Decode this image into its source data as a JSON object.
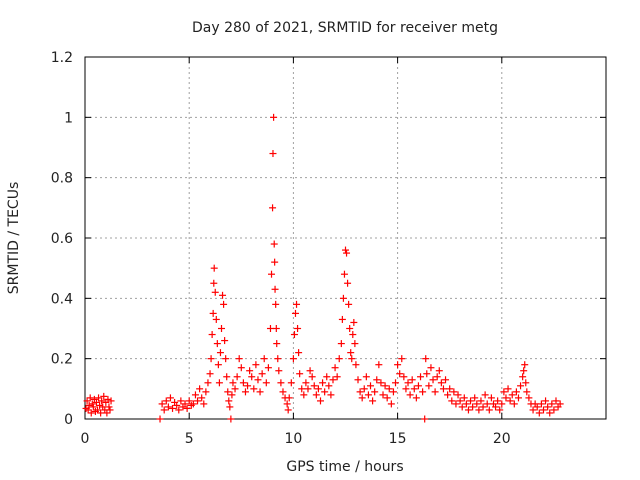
{
  "chart_data": {
    "type": "scatter",
    "title": "Day 280 of 2021, SRMTID for receiver metg",
    "xlabel": "GPS time / hours",
    "ylabel": "SRMTID / TECUs",
    "xlim": [
      0,
      25
    ],
    "ylim": [
      0,
      1.2
    ],
    "xticks": [
      0,
      5,
      10,
      15,
      20
    ],
    "yticks": [
      0,
      0.2,
      0.4,
      0.6,
      0.8,
      1,
      1.2
    ],
    "ytick_labels": [
      "0",
      "0.2",
      "0.4",
      "0.6",
      "0.8",
      "1",
      "1.2"
    ],
    "grid": true,
    "marker": "+",
    "color": "#ff0000",
    "series": [
      {
        "name": "SRMTID",
        "points": [
          [
            0.05,
            0.035
          ],
          [
            0.1,
            0.06
          ],
          [
            0.15,
            0.03
          ],
          [
            0.2,
            0.045
          ],
          [
            0.25,
            0.07
          ],
          [
            0.3,
            0.02
          ],
          [
            0.35,
            0.05
          ],
          [
            0.4,
            0.04
          ],
          [
            0.45,
            0.065
          ],
          [
            0.5,
            0.025
          ],
          [
            0.55,
            0.055
          ],
          [
            0.6,
            0.03
          ],
          [
            0.65,
            0.07
          ],
          [
            0.7,
            0.045
          ],
          [
            0.75,
            0.02
          ],
          [
            0.8,
            0.06
          ],
          [
            0.85,
            0.04
          ],
          [
            0.9,
            0.075
          ],
          [
            0.95,
            0.03
          ],
          [
            1.0,
            0.055
          ],
          [
            1.05,
            0.02
          ],
          [
            1.1,
            0.065
          ],
          [
            1.15,
            0.04
          ],
          [
            1.2,
            0.03
          ],
          [
            1.25,
            0.06
          ],
          [
            3.6,
            0.0
          ],
          [
            3.7,
            0.05
          ],
          [
            3.8,
            0.03
          ],
          [
            3.9,
            0.06
          ],
          [
            4.0,
            0.04
          ],
          [
            4.1,
            0.07
          ],
          [
            4.2,
            0.035
          ],
          [
            4.3,
            0.055
          ],
          [
            4.4,
            0.045
          ],
          [
            4.5,
            0.03
          ],
          [
            4.6,
            0.06
          ],
          [
            4.7,
            0.04
          ],
          [
            4.8,
            0.05
          ],
          [
            4.9,
            0.035
          ],
          [
            5.0,
            0.06
          ],
          [
            5.1,
            0.045
          ],
          [
            5.2,
            0.05
          ],
          [
            5.3,
            0.08
          ],
          [
            5.4,
            0.06
          ],
          [
            5.5,
            0.1
          ],
          [
            5.6,
            0.07
          ],
          [
            5.7,
            0.05
          ],
          [
            5.8,
            0.09
          ],
          [
            5.9,
            0.12
          ],
          [
            6.0,
            0.15
          ],
          [
            6.05,
            0.2
          ],
          [
            6.1,
            0.28
          ],
          [
            6.15,
            0.35
          ],
          [
            6.18,
            0.45
          ],
          [
            6.2,
            0.5
          ],
          [
            6.25,
            0.42
          ],
          [
            6.3,
            0.33
          ],
          [
            6.35,
            0.25
          ],
          [
            6.4,
            0.18
          ],
          [
            6.45,
            0.12
          ],
          [
            6.5,
            0.22
          ],
          [
            6.55,
            0.3
          ],
          [
            6.6,
            0.41
          ],
          [
            6.65,
            0.38
          ],
          [
            6.7,
            0.26
          ],
          [
            6.75,
            0.2
          ],
          [
            6.8,
            0.14
          ],
          [
            6.85,
            0.09
          ],
          [
            6.9,
            0.06
          ],
          [
            6.95,
            0.04
          ],
          [
            7.0,
            0.0
          ],
          [
            7.05,
            0.08
          ],
          [
            7.1,
            0.12
          ],
          [
            7.2,
            0.1
          ],
          [
            7.3,
            0.14
          ],
          [
            7.4,
            0.2
          ],
          [
            7.5,
            0.17
          ],
          [
            7.6,
            0.12
          ],
          [
            7.7,
            0.09
          ],
          [
            7.8,
            0.11
          ],
          [
            7.9,
            0.16
          ],
          [
            8.0,
            0.14
          ],
          [
            8.1,
            0.1
          ],
          [
            8.2,
            0.18
          ],
          [
            8.3,
            0.13
          ],
          [
            8.4,
            0.09
          ],
          [
            8.5,
            0.15
          ],
          [
            8.6,
            0.2
          ],
          [
            8.7,
            0.12
          ],
          [
            8.8,
            0.17
          ],
          [
            8.9,
            0.3
          ],
          [
            8.95,
            0.48
          ],
          [
            9.0,
            0.7
          ],
          [
            9.02,
            0.88
          ],
          [
            9.05,
            1.0
          ],
          [
            9.08,
            0.58
          ],
          [
            9.1,
            0.52
          ],
          [
            9.12,
            0.43
          ],
          [
            9.15,
            0.38
          ],
          [
            9.18,
            0.3
          ],
          [
            9.2,
            0.25
          ],
          [
            9.25,
            0.2
          ],
          [
            9.3,
            0.16
          ],
          [
            9.4,
            0.12
          ],
          [
            9.5,
            0.09
          ],
          [
            9.6,
            0.07
          ],
          [
            9.7,
            0.05
          ],
          [
            9.75,
            0.03
          ],
          [
            9.8,
            0.07
          ],
          [
            9.9,
            0.12
          ],
          [
            10.0,
            0.2
          ],
          [
            10.05,
            0.28
          ],
          [
            10.1,
            0.35
          ],
          [
            10.15,
            0.38
          ],
          [
            10.2,
            0.3
          ],
          [
            10.25,
            0.22
          ],
          [
            10.3,
            0.15
          ],
          [
            10.4,
            0.1
          ],
          [
            10.5,
            0.08
          ],
          [
            10.6,
            0.12
          ],
          [
            10.7,
            0.1
          ],
          [
            10.8,
            0.16
          ],
          [
            10.9,
            0.14
          ],
          [
            11.0,
            0.11
          ],
          [
            11.1,
            0.08
          ],
          [
            11.2,
            0.1
          ],
          [
            11.3,
            0.06
          ],
          [
            11.4,
            0.12
          ],
          [
            11.5,
            0.09
          ],
          [
            11.6,
            0.14
          ],
          [
            11.7,
            0.11
          ],
          [
            11.8,
            0.08
          ],
          [
            11.9,
            0.13
          ],
          [
            12.0,
            0.17
          ],
          [
            12.1,
            0.14
          ],
          [
            12.2,
            0.2
          ],
          [
            12.3,
            0.25
          ],
          [
            12.35,
            0.33
          ],
          [
            12.4,
            0.4
          ],
          [
            12.45,
            0.48
          ],
          [
            12.5,
            0.56
          ],
          [
            12.55,
            0.55
          ],
          [
            12.6,
            0.45
          ],
          [
            12.65,
            0.38
          ],
          [
            12.7,
            0.3
          ],
          [
            12.75,
            0.22
          ],
          [
            12.8,
            0.2
          ],
          [
            12.85,
            0.28
          ],
          [
            12.9,
            0.32
          ],
          [
            12.95,
            0.25
          ],
          [
            13.0,
            0.18
          ],
          [
            13.1,
            0.13
          ],
          [
            13.2,
            0.09
          ],
          [
            13.3,
            0.07
          ],
          [
            13.4,
            0.1
          ],
          [
            13.5,
            0.14
          ],
          [
            13.6,
            0.08
          ],
          [
            13.7,
            0.11
          ],
          [
            13.8,
            0.06
          ],
          [
            13.9,
            0.09
          ],
          [
            14.0,
            0.13
          ],
          [
            14.1,
            0.18
          ],
          [
            14.2,
            0.12
          ],
          [
            14.3,
            0.08
          ],
          [
            14.4,
            0.11
          ],
          [
            14.5,
            0.07
          ],
          [
            14.6,
            0.1
          ],
          [
            14.7,
            0.05
          ],
          [
            14.8,
            0.09
          ],
          [
            14.9,
            0.12
          ],
          [
            15.0,
            0.18
          ],
          [
            15.1,
            0.15
          ],
          [
            15.2,
            0.2
          ],
          [
            15.3,
            0.14
          ],
          [
            15.4,
            0.1
          ],
          [
            15.5,
            0.12
          ],
          [
            15.6,
            0.08
          ],
          [
            15.7,
            0.13
          ],
          [
            15.8,
            0.1
          ],
          [
            15.9,
            0.07
          ],
          [
            16.0,
            0.11
          ],
          [
            16.1,
            0.14
          ],
          [
            16.2,
            0.09
          ],
          [
            16.3,
            0.0
          ],
          [
            16.35,
            0.2
          ],
          [
            16.4,
            0.15
          ],
          [
            16.5,
            0.11
          ],
          [
            16.6,
            0.17
          ],
          [
            16.7,
            0.13
          ],
          [
            16.8,
            0.09
          ],
          [
            16.9,
            0.14
          ],
          [
            17.0,
            0.16
          ],
          [
            17.1,
            0.12
          ],
          [
            17.2,
            0.1
          ],
          [
            17.3,
            0.13
          ],
          [
            17.4,
            0.08
          ],
          [
            17.5,
            0.1
          ],
          [
            17.6,
            0.06
          ],
          [
            17.7,
            0.09
          ],
          [
            17.8,
            0.05
          ],
          [
            17.9,
            0.08
          ],
          [
            18.0,
            0.06
          ],
          [
            18.1,
            0.04
          ],
          [
            18.2,
            0.07
          ],
          [
            18.3,
            0.05
          ],
          [
            18.4,
            0.03
          ],
          [
            18.5,
            0.06
          ],
          [
            18.6,
            0.04
          ],
          [
            18.7,
            0.07
          ],
          [
            18.8,
            0.05
          ],
          [
            18.9,
            0.03
          ],
          [
            19.0,
            0.06
          ],
          [
            19.1,
            0.04
          ],
          [
            19.2,
            0.08
          ],
          [
            19.3,
            0.05
          ],
          [
            19.4,
            0.03
          ],
          [
            19.5,
            0.07
          ],
          [
            19.6,
            0.05
          ],
          [
            19.7,
            0.04
          ],
          [
            19.8,
            0.06
          ],
          [
            19.9,
            0.03
          ],
          [
            20.0,
            0.05
          ],
          [
            20.1,
            0.09
          ],
          [
            20.2,
            0.07
          ],
          [
            20.3,
            0.1
          ],
          [
            20.4,
            0.06
          ],
          [
            20.5,
            0.08
          ],
          [
            20.6,
            0.05
          ],
          [
            20.7,
            0.09
          ],
          [
            20.8,
            0.07
          ],
          [
            20.9,
            0.11
          ],
          [
            21.0,
            0.14
          ],
          [
            21.05,
            0.16
          ],
          [
            21.1,
            0.18
          ],
          [
            21.15,
            0.12
          ],
          [
            21.2,
            0.09
          ],
          [
            21.3,
            0.07
          ],
          [
            21.4,
            0.05
          ],
          [
            21.5,
            0.03
          ],
          [
            21.6,
            0.05
          ],
          [
            21.7,
            0.04
          ],
          [
            21.8,
            0.02
          ],
          [
            21.9,
            0.05
          ],
          [
            22.0,
            0.03
          ],
          [
            22.1,
            0.06
          ],
          [
            22.2,
            0.04
          ],
          [
            22.3,
            0.02
          ],
          [
            22.4,
            0.05
          ],
          [
            22.5,
            0.03
          ],
          [
            22.6,
            0.06
          ],
          [
            22.7,
            0.04
          ],
          [
            22.8,
            0.05
          ]
        ]
      }
    ]
  }
}
